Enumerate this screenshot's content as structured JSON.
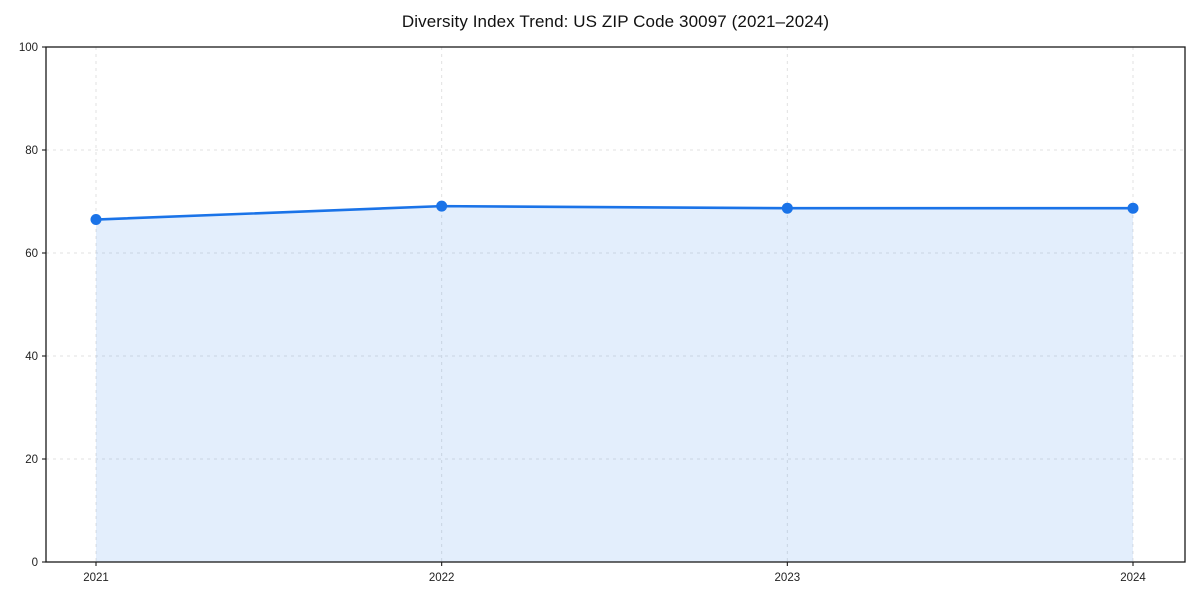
{
  "page": {
    "background_color": "#ffffff"
  },
  "chart_data": {
    "type": "area",
    "title": "Diversity Index Trend: US ZIP Code 30097 (2021–2024)",
    "x": [
      2021,
      2022,
      2023,
      2024
    ],
    "xtick_labels": [
      "2021",
      "2022",
      "2023",
      "2024"
    ],
    "series": [
      {
        "name": "Diversity Index",
        "values": [
          66.5,
          69.1,
          68.7,
          68.7
        ]
      }
    ],
    "xlabel": "",
    "ylabel": "",
    "ylim": [
      0,
      100
    ],
    "yticks": [
      0,
      20,
      40,
      60,
      80,
      100
    ],
    "ytick_labels": [
      "0",
      "20",
      "40",
      "60",
      "80",
      "100"
    ],
    "grid": "dashed, both axes",
    "legend_position": "none",
    "line_color": "#1a73e8",
    "marker_color": "#1a73e8",
    "fill_color": "rgba(26,115,232,0.12)",
    "marker": "circle",
    "spine_color": "#1a1a1a"
  }
}
